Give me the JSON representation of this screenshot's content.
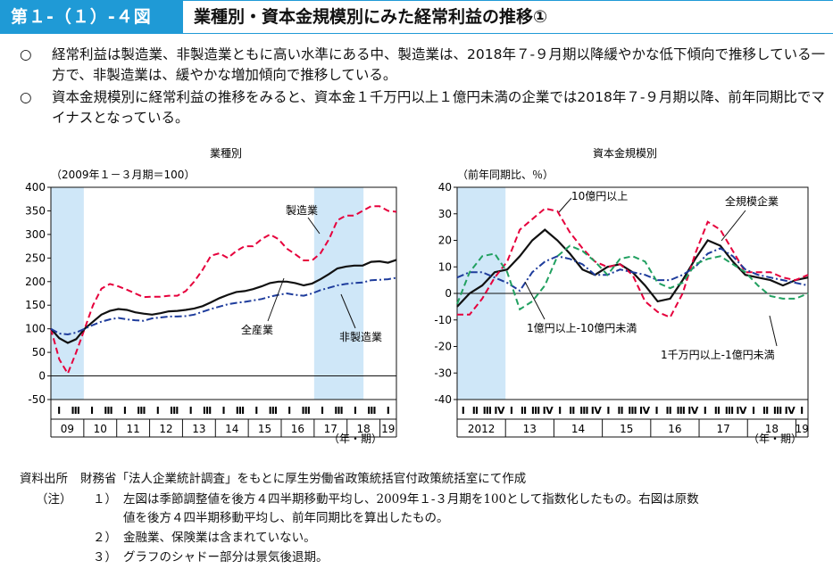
{
  "header": {
    "figure_label": "第１-（１）-４図",
    "figure_title": "業種別・資本金規模別にみた経常利益の推移①"
  },
  "bullets": [
    {
      "mark": "○",
      "text": "経常利益は製造業、非製造業ともに高い水準にある中、製造業は、2018年７-９月期以降緩やかな低下傾向で推移している一方で、非製造業は、緩やかな増加傾向で推移している。"
    },
    {
      "mark": "○",
      "text": "資本金規模別に経常利益の推移をみると、資本金１千万円以上１億円未満の企業では2018年７-９月期以降、前年同期比でマイナスとなっている。"
    }
  ],
  "chart_data": [
    {
      "type": "line",
      "title": "業種別",
      "ylabel": "（2009年１－３月期＝100）",
      "xlabel": "（年・期）",
      "ylim": [
        -50,
        400
      ],
      "yticks": [
        -50,
        0,
        50,
        100,
        150,
        200,
        250,
        300,
        350,
        400
      ],
      "quarter_labels": [
        "Ⅰ",
        "Ⅲ",
        "Ⅰ",
        "Ⅲ",
        "Ⅰ",
        "Ⅲ",
        "Ⅰ",
        "Ⅲ",
        "Ⅰ",
        "Ⅲ",
        "Ⅰ",
        "Ⅲ",
        "Ⅰ",
        "Ⅲ",
        "Ⅰ",
        "Ⅲ",
        "Ⅰ",
        "Ⅲ",
        "Ⅰ",
        "Ⅲ",
        "Ⅰ"
      ],
      "year_labels": [
        "09",
        "10",
        "11",
        "12",
        "13",
        "14",
        "15",
        "16",
        "17",
        "18",
        "19"
      ],
      "shaded_periods": [
        [
          0,
          1
        ],
        [
          16,
          18
        ]
      ],
      "series": [
        {
          "name": "製造業",
          "style": "dashed",
          "color": "#e6003c",
          "values": [
            100,
            35,
            5,
            50,
            100,
            150,
            185,
            195,
            190,
            183,
            175,
            167,
            168,
            168,
            170,
            170,
            180,
            200,
            225,
            255,
            260,
            250,
            265,
            275,
            275,
            290,
            300,
            290,
            270,
            258,
            245,
            245,
            260,
            290,
            330,
            340,
            340,
            350,
            360,
            360,
            350,
            348
          ]
        },
        {
          "name": "全産業",
          "style": "solid",
          "color": "#111111",
          "values": [
            100,
            80,
            70,
            78,
            100,
            115,
            130,
            138,
            142,
            140,
            135,
            132,
            130,
            133,
            137,
            138,
            140,
            143,
            148,
            156,
            165,
            172,
            178,
            180,
            184,
            190,
            197,
            200,
            200,
            197,
            192,
            196,
            205,
            216,
            228,
            232,
            234,
            234,
            242,
            243,
            240,
            246
          ]
        },
        {
          "name": "非製造業",
          "style": "dashdot",
          "color": "#1e3c9c",
          "values": [
            100,
            90,
            88,
            92,
            100,
            108,
            115,
            120,
            123,
            120,
            118,
            117,
            122,
            124,
            126,
            126,
            127,
            130,
            136,
            142,
            147,
            152,
            155,
            157,
            160,
            163,
            168,
            172,
            175,
            172,
            170,
            175,
            182,
            187,
            192,
            195,
            197,
            198,
            203,
            204,
            205,
            208
          ]
        }
      ],
      "annotations": [
        "製造業",
        "全産業",
        "非製造業"
      ]
    },
    {
      "type": "line",
      "title": "資本金規模別",
      "ylabel": "（前年同期比、％）",
      "xlabel": "（年・期）",
      "ylim": [
        -40,
        40
      ],
      "yticks": [
        -40,
        -30,
        -20,
        -10,
        0,
        10,
        20,
        30,
        40
      ],
      "quarter_labels": [
        "Ⅰ",
        "Ⅱ",
        "Ⅲ",
        "Ⅳ",
        "Ⅰ",
        "Ⅱ",
        "Ⅲ",
        "Ⅳ",
        "Ⅰ",
        "Ⅱ",
        "Ⅲ",
        "Ⅳ",
        "Ⅰ",
        "Ⅱ",
        "Ⅲ",
        "Ⅳ",
        "Ⅰ",
        "Ⅱ",
        "Ⅲ",
        "Ⅳ",
        "Ⅰ",
        "Ⅱ",
        "Ⅲ",
        "Ⅳ",
        "Ⅰ",
        "Ⅱ",
        "Ⅲ",
        "Ⅳ",
        "Ⅰ"
      ],
      "year_labels": [
        "2012",
        "13",
        "14",
        "15",
        "16",
        "17",
        "18",
        "19"
      ],
      "shaded_periods": [
        [
          0,
          3
        ]
      ],
      "series": [
        {
          "name": "全規模企業",
          "style": "solid",
          "color": "#111111",
          "values": [
            -5,
            0,
            3,
            8,
            9,
            14,
            20,
            24,
            20,
            15,
            9,
            7,
            10,
            11,
            8,
            3,
            -3,
            -2,
            5,
            13,
            20,
            18,
            12,
            7,
            6,
            5,
            3,
            5,
            6
          ]
        },
        {
          "name": "10億円以上",
          "style": "dashed",
          "color": "#e6003c",
          "values": [
            -8,
            -8,
            -2,
            6,
            12,
            24,
            28,
            32,
            31,
            23,
            17,
            12,
            10,
            11,
            7,
            -3,
            -7,
            -9,
            0,
            15,
            27,
            24,
            16,
            8,
            8,
            8,
            6,
            5,
            7
          ]
        },
        {
          "name": "1億円以上-10億円未満",
          "style": "dashdot",
          "color": "#1e3c9c",
          "values": [
            6,
            8,
            8,
            6,
            4,
            1,
            8,
            12,
            14,
            13,
            11,
            7,
            7,
            9,
            8,
            7,
            5,
            5,
            7,
            10,
            15,
            17,
            14,
            9,
            7,
            6,
            5,
            4,
            3
          ]
        },
        {
          "name": "1千万円以上-1億円未満",
          "style": "dashed",
          "color": "#21a060",
          "values": [
            -4,
            8,
            14,
            15,
            8,
            -6,
            -3,
            3,
            14,
            18,
            16,
            12,
            7,
            13,
            14,
            12,
            4,
            2,
            4,
            11,
            13,
            14,
            11,
            8,
            3,
            -1,
            -2,
            -2,
            0
          ]
        }
      ],
      "annotations": [
        "10億円以上",
        "全規模企業",
        "1億円以上-10億円未満",
        "1千万円以上-1億円未満"
      ]
    }
  ],
  "footer": {
    "source_label": "資料出所",
    "source_text": "財務省「法人企業統計調査」をもとに厚生労働省政策統括官付政策統括室にて作成",
    "notes_label": "（注）",
    "notes": [
      {
        "num": "１）",
        "text": "左図は季節調整値を後方４四半期移動平均し、2009年１-３月期を100として指数化したもの。右図は原数"
      },
      {
        "num": "",
        "text": "値を後方４四半期移動平均し、前年同期比を算出したもの。"
      },
      {
        "num": "２）",
        "text": "金融業、保険業は含まれていない。"
      },
      {
        "num": "３）",
        "text": "グラフのシャドー部分は景気後退期。"
      }
    ]
  }
}
